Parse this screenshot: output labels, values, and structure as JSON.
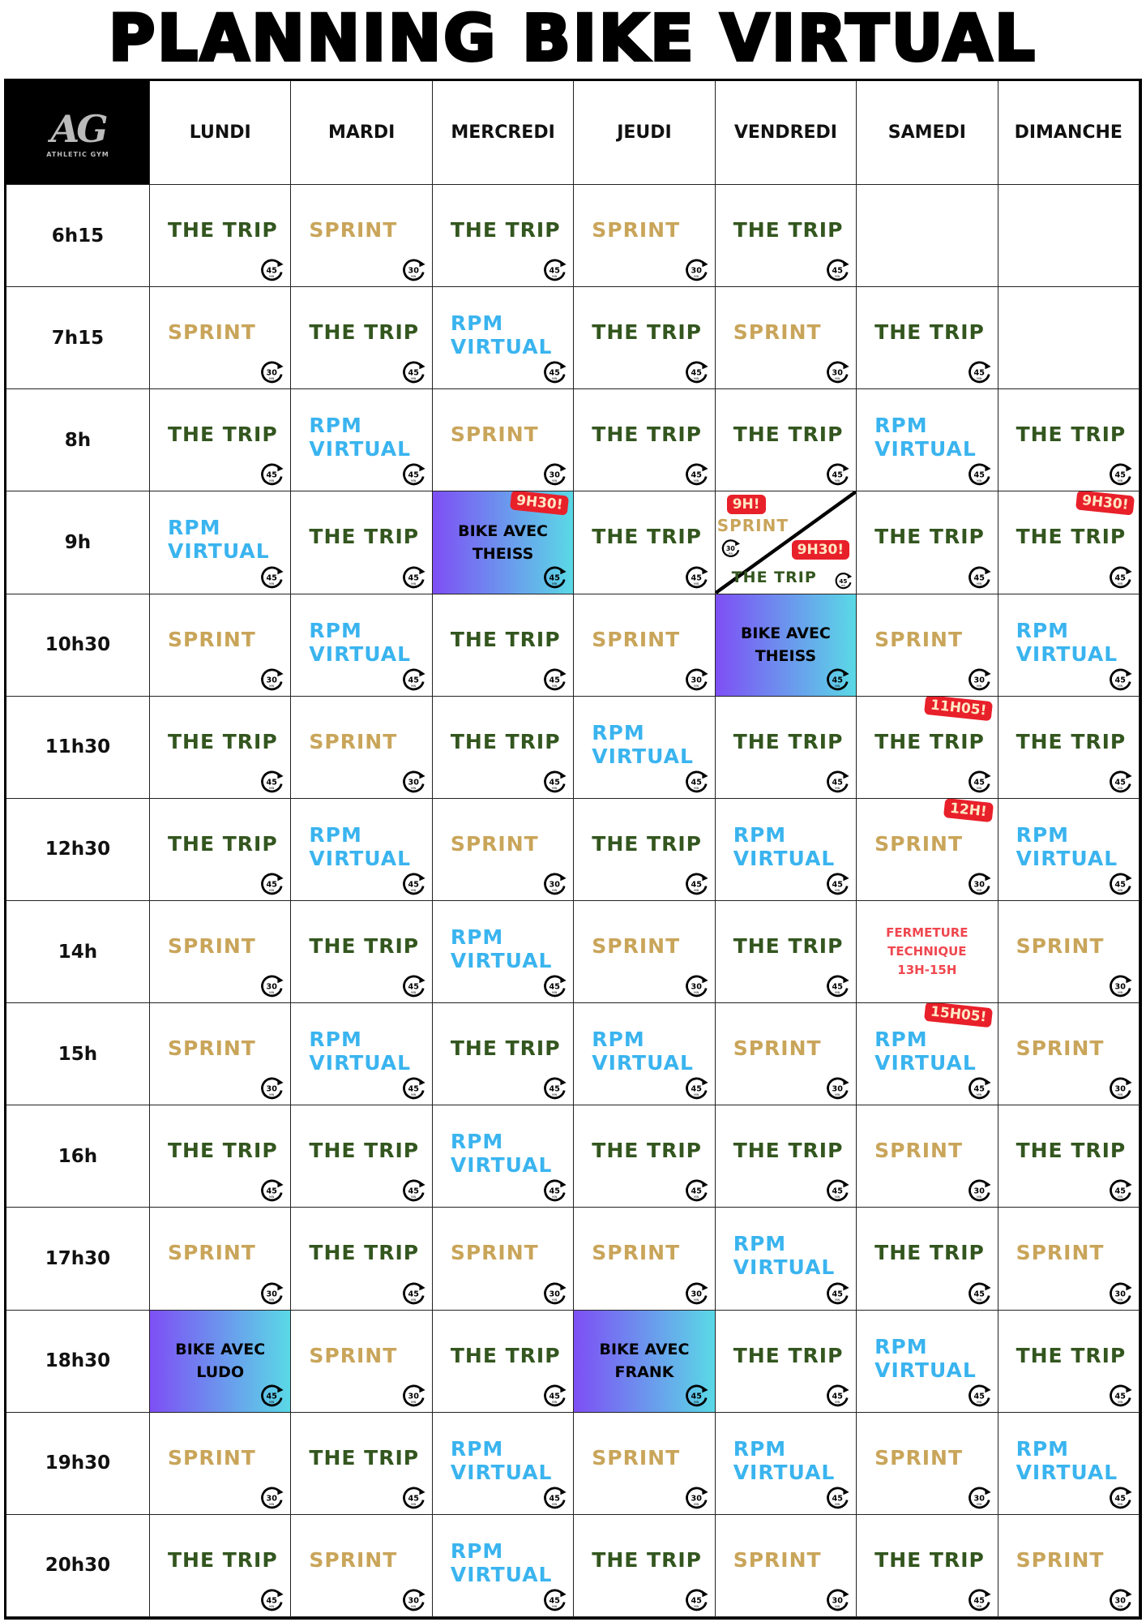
{
  "title": "PLANNING BIKE VIRTUAL",
  "logo": {
    "mark": "AG",
    "text": "ATHLETIC GYM"
  },
  "days": [
    "LUNDI",
    "MARDI",
    "MERCREDI",
    "JEUDI",
    "VENDREDI",
    "SAMEDI",
    "DIMANCHE"
  ],
  "classes": {
    "T": "THE TRIP",
    "S": "SPRINT",
    "R1": "RPM",
    "R2": "VIRTUAL"
  },
  "colors": {
    "the_trip": "#33561f",
    "sprint": "#c9a55a",
    "rpm_virtual": "#3ab4ef",
    "badge": "#e8202a",
    "gradient_start": "#7e4ff5",
    "gradient_end": "#5ad9e6"
  },
  "timer_unit": "MIN",
  "rows": [
    {
      "time": "6h15",
      "cells": [
        {
          "c": "T",
          "d": "45"
        },
        {
          "c": "S",
          "d": "30"
        },
        {
          "c": "T",
          "d": "45"
        },
        {
          "c": "S",
          "d": "30"
        },
        {
          "c": "T",
          "d": "45"
        },
        {
          "c": ""
        },
        {
          "c": ""
        }
      ]
    },
    {
      "time": "7h15",
      "cells": [
        {
          "c": "S",
          "d": "30"
        },
        {
          "c": "T",
          "d": "45"
        },
        {
          "c": "R",
          "d": "45"
        },
        {
          "c": "T",
          "d": "45"
        },
        {
          "c": "S",
          "d": "30"
        },
        {
          "c": "T",
          "d": "45"
        },
        {
          "c": ""
        }
      ]
    },
    {
      "time": "8h",
      "cells": [
        {
          "c": "T",
          "d": "45"
        },
        {
          "c": "R",
          "d": "45"
        },
        {
          "c": "S",
          "d": "30"
        },
        {
          "c": "T",
          "d": "45"
        },
        {
          "c": "T",
          "d": "45"
        },
        {
          "c": "R",
          "d": "45"
        },
        {
          "c": "T",
          "d": "45"
        }
      ]
    },
    {
      "time": "9h",
      "cells": [
        {
          "c": "R",
          "d": "45"
        },
        {
          "c": "T",
          "d": "45"
        },
        {
          "c": "BIKE",
          "l1": "BIKE AVEC",
          "l2": "THEISS",
          "d": "45",
          "b": "9H30!"
        },
        {
          "c": "T",
          "d": "45"
        },
        {
          "c": "SPLIT",
          "b1": "9H!",
          "c1": "S",
          "d1": "30",
          "b2": "9H30!",
          "c2": "T",
          "d2": "45"
        },
        {
          "c": "T",
          "d": "45"
        },
        {
          "c": "T",
          "d": "45",
          "b": "9H30!"
        }
      ]
    },
    {
      "time": "10h30",
      "cells": [
        {
          "c": "S",
          "d": "30"
        },
        {
          "c": "R",
          "d": "45"
        },
        {
          "c": "T",
          "d": "45"
        },
        {
          "c": "S",
          "d": "30"
        },
        {
          "c": "BIKE",
          "l1": "BIKE AVEC",
          "l2": "THEISS",
          "d": "45"
        },
        {
          "c": "S",
          "d": "30"
        },
        {
          "c": "R",
          "d": "45"
        }
      ]
    },
    {
      "time": "11h30",
      "cells": [
        {
          "c": "T",
          "d": "45"
        },
        {
          "c": "S",
          "d": "30"
        },
        {
          "c": "T",
          "d": "45"
        },
        {
          "c": "R",
          "d": "45"
        },
        {
          "c": "T",
          "d": "45"
        },
        {
          "c": "T",
          "d": "45",
          "b": "11H05!"
        },
        {
          "c": "T",
          "d": "45"
        }
      ]
    },
    {
      "time": "12h30",
      "cells": [
        {
          "c": "T",
          "d": "45"
        },
        {
          "c": "R",
          "d": "45"
        },
        {
          "c": "S",
          "d": "30"
        },
        {
          "c": "T",
          "d": "45"
        },
        {
          "c": "R",
          "d": "45"
        },
        {
          "c": "S",
          "d": "30",
          "b": "12H!"
        },
        {
          "c": "R",
          "d": "45"
        }
      ]
    },
    {
      "time": "14h",
      "cells": [
        {
          "c": "S",
          "d": "30"
        },
        {
          "c": "T",
          "d": "45"
        },
        {
          "c": "R",
          "d": "45"
        },
        {
          "c": "S",
          "d": "30"
        },
        {
          "c": "T",
          "d": "45"
        },
        {
          "c": "FERM",
          "l1": "FERMETURE",
          "l2": "TECHNIQUE",
          "l3": "13H-15H"
        },
        {
          "c": "S",
          "d": "30"
        }
      ]
    },
    {
      "time": "15h",
      "cells": [
        {
          "c": "S",
          "d": "30"
        },
        {
          "c": "R",
          "d": "45"
        },
        {
          "c": "T",
          "d": "45"
        },
        {
          "c": "R",
          "d": "45"
        },
        {
          "c": "S",
          "d": "30"
        },
        {
          "c": "R",
          "d": "45",
          "b": "15H05!"
        },
        {
          "c": "S",
          "d": "30"
        }
      ]
    },
    {
      "time": "16h",
      "cells": [
        {
          "c": "T",
          "d": "45"
        },
        {
          "c": "T",
          "d": "45"
        },
        {
          "c": "R",
          "d": "45"
        },
        {
          "c": "T",
          "d": "45"
        },
        {
          "c": "T",
          "d": "45"
        },
        {
          "c": "S",
          "d": "30"
        },
        {
          "c": "T",
          "d": "45"
        }
      ]
    },
    {
      "time": "17h30",
      "cells": [
        {
          "c": "S",
          "d": "30"
        },
        {
          "c": "T",
          "d": "45"
        },
        {
          "c": "S",
          "d": "30"
        },
        {
          "c": "S",
          "d": "30"
        },
        {
          "c": "R",
          "d": "45"
        },
        {
          "c": "T",
          "d": "45"
        },
        {
          "c": "S",
          "d": "30"
        }
      ]
    },
    {
      "time": "18h30",
      "cells": [
        {
          "c": "BIKE",
          "l1": "BIKE AVEC",
          "l2": "LUDO",
          "d": "45"
        },
        {
          "c": "S",
          "d": "30"
        },
        {
          "c": "T",
          "d": "45"
        },
        {
          "c": "BIKE",
          "l1": "BIKE AVEC",
          "l2": "FRANK",
          "d": "45"
        },
        {
          "c": "T",
          "d": "45"
        },
        {
          "c": "R",
          "d": "45"
        },
        {
          "c": "T",
          "d": "45"
        }
      ]
    },
    {
      "time": "19h30",
      "cells": [
        {
          "c": "S",
          "d": "30"
        },
        {
          "c": "T",
          "d": "45"
        },
        {
          "c": "R",
          "d": "45"
        },
        {
          "c": "S",
          "d": "30"
        },
        {
          "c": "R",
          "d": "45"
        },
        {
          "c": "S",
          "d": "30"
        },
        {
          "c": "R",
          "d": "45"
        }
      ]
    },
    {
      "time": "20h30",
      "cells": [
        {
          "c": "T",
          "d": "45"
        },
        {
          "c": "S",
          "d": "30"
        },
        {
          "c": "R",
          "d": "45"
        },
        {
          "c": "T",
          "d": "45"
        },
        {
          "c": "S",
          "d": "30"
        },
        {
          "c": "T",
          "d": "45"
        },
        {
          "c": "S",
          "d": "30"
        }
      ]
    }
  ]
}
